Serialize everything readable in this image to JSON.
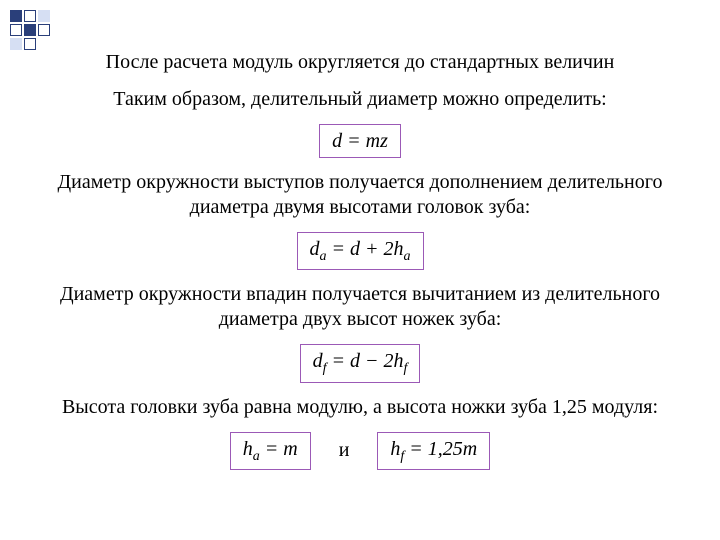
{
  "colors": {
    "text": "#000000",
    "background": "#ffffff",
    "formula_border": "#9b59b6",
    "deco_outline": "#2a3f7a",
    "deco_fill_dark": "#2a3f7a",
    "deco_fill_light": "#d6dff3"
  },
  "typography": {
    "body_font": "Times New Roman",
    "body_size_pt": 20,
    "formula_font": "Times New Roman",
    "formula_style": "italic"
  },
  "decoration": {
    "pattern": [
      [
        "fill_dark",
        "outline",
        "fill_light"
      ],
      [
        "outline",
        "fill_dark",
        "outline"
      ],
      [
        "fill_light",
        "outline",
        "none"
      ]
    ]
  },
  "paragraphs": {
    "p1": "После расчета модуль округляется до стандартных величин",
    "p2": "Таким образом, делительный диаметр можно определить:",
    "p3": "Диаметр окружности выступов получается дополнением делительного диаметра двумя высотами головок зуба:",
    "p4": "Диаметр окружности впадин получается вычитанием из делительного диаметра двух высот ножек зуба:",
    "p5": "Высота головки зуба равна модулю, а высота ножки зуба 1,25 модуля:",
    "conj": "и"
  },
  "formulas": {
    "f1": "d = mz",
    "f2": "d<sub>a</sub> = d + 2h<sub>a</sub>",
    "f3": "d<sub>f</sub> = d − 2h<sub>f</sub>",
    "f4": "h<sub>a</sub> = m",
    "f5": "h<sub>f</sub> = 1,25m"
  }
}
